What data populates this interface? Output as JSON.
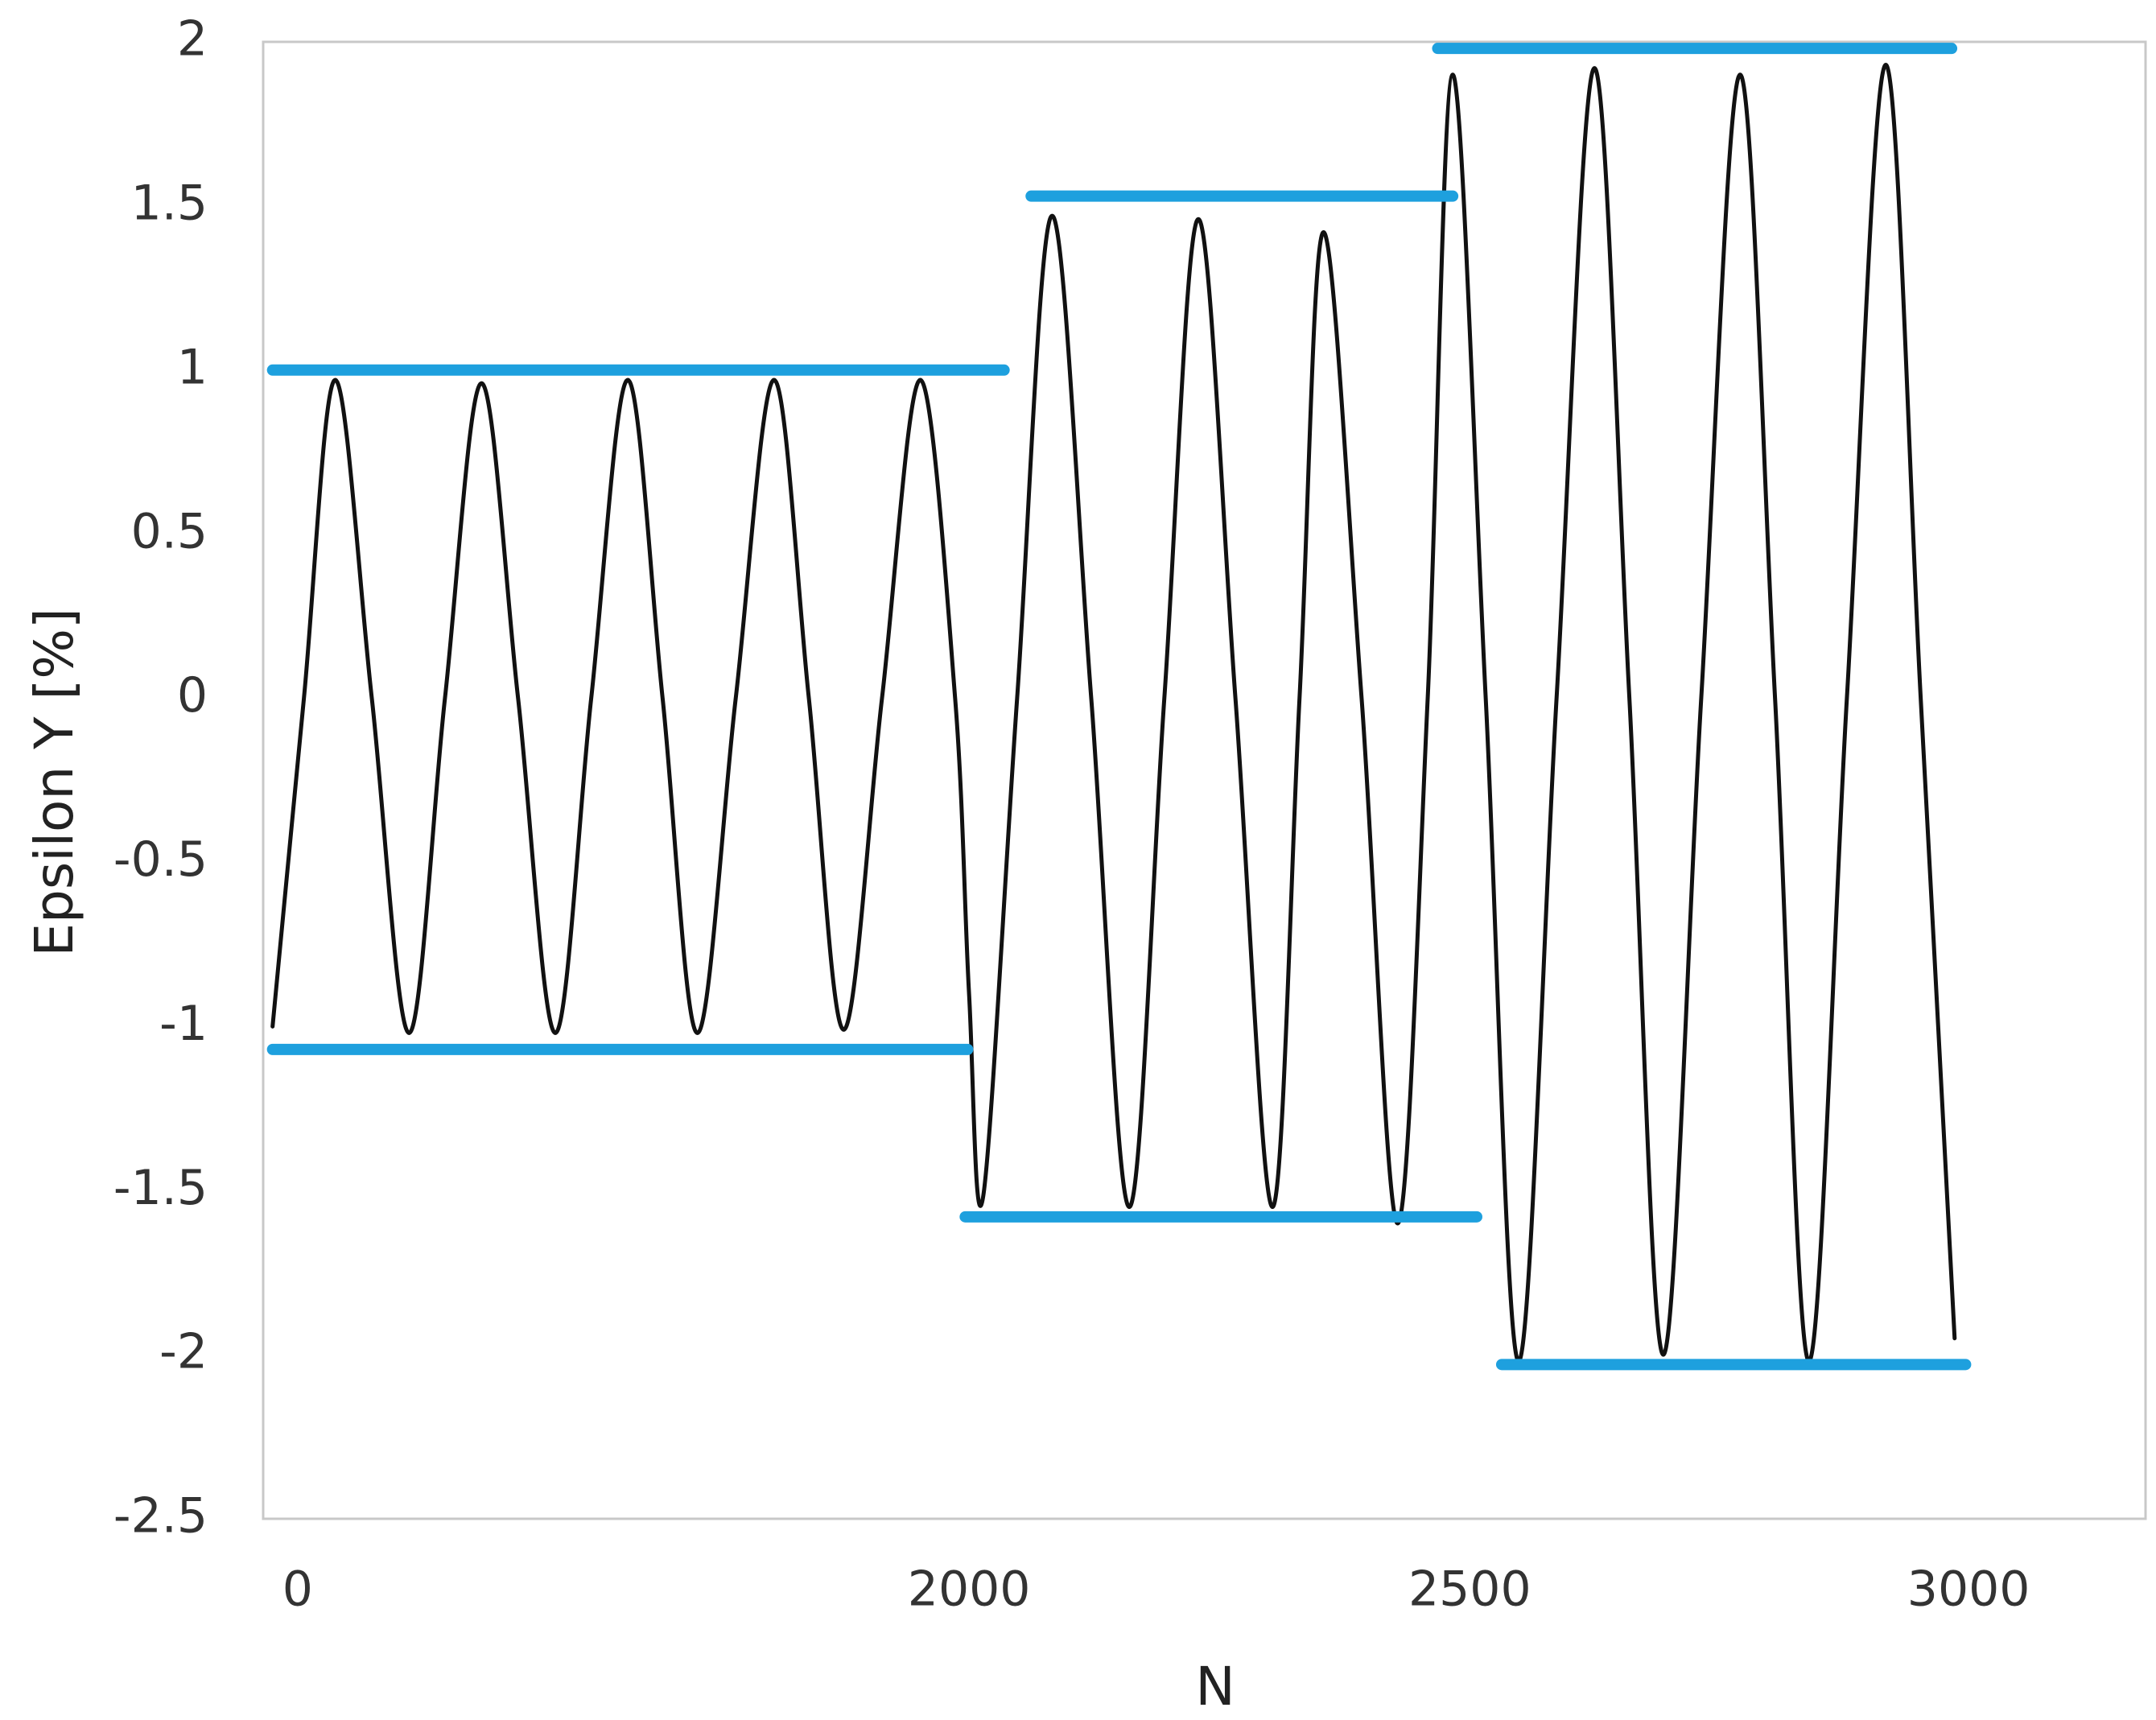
{
  "chart_data": {
    "type": "line",
    "x_label": "N",
    "y_label": "Epsilon Y [%]",
    "xlim": [
      0,
      3180
    ],
    "xticks": [
      0,
      2000,
      2500,
      3000
    ],
    "ylim": [
      -2.5,
      2
    ],
    "yticks": [
      -2.5,
      -2,
      -1.5,
      -1,
      -0.5,
      0,
      0.5,
      1,
      1.5,
      2
    ],
    "series": [
      {
        "color": "#111111",
        "x": [
          0,
          90,
          180,
          285,
          392,
          495,
          600,
          705,
          812,
          915,
          1020,
          1120,
          1220,
          1330,
          1440,
          1540,
          1640,
          1750,
          1860,
          1960,
          2000,
          2014,
          2048,
          2083,
          2122,
          2160,
          2195,
          2229,
          2266,
          2303,
          2330,
          2354,
          2392,
          2428,
          2458,
          2483,
          2516,
          2549,
          2587,
          2625,
          2660,
          2694,
          2732,
          2771,
          2806,
          2840,
          2878,
          2917,
          2952,
          2986
        ],
        "values": [
          -1,
          0,
          0.97,
          0,
          -1.02,
          0,
          0.96,
          0,
          -1.02,
          0,
          0.97,
          0,
          -1.02,
          0,
          0.97,
          0,
          -1.01,
          0,
          0.97,
          0,
          -0.9,
          -1.52,
          0,
          1.47,
          0,
          -1.55,
          0,
          1.46,
          0,
          -1.55,
          0,
          1.42,
          0,
          -1.6,
          0,
          1.9,
          0,
          -2.02,
          0,
          1.92,
          0,
          -2.0,
          0,
          1.9,
          0,
          -2.02,
          0,
          1.93,
          0,
          -1.95
        ]
      },
      {
        "color": "#1ea0de",
        "x": [
          0,
          2035
        ],
        "values": [
          1,
          1
        ]
      },
      {
        "color": "#1ea0de",
        "x": [
          0,
          1996
        ],
        "values": [
          -1.07,
          -1.07
        ]
      },
      {
        "color": "#1ea0de",
        "x": [
          2062,
          2483
        ],
        "values": [
          1.53,
          1.53
        ]
      },
      {
        "color": "#1ea0de",
        "x": [
          1989,
          2507
        ],
        "values": [
          -1.58,
          -1.58
        ]
      },
      {
        "color": "#1ea0de",
        "x": [
          2468,
          2983
        ],
        "values": [
          1.98,
          1.98
        ]
      },
      {
        "color": "#1ea0de",
        "x": [
          2532,
          2997
        ],
        "values": [
          -2.03,
          -2.03
        ]
      }
    ]
  }
}
